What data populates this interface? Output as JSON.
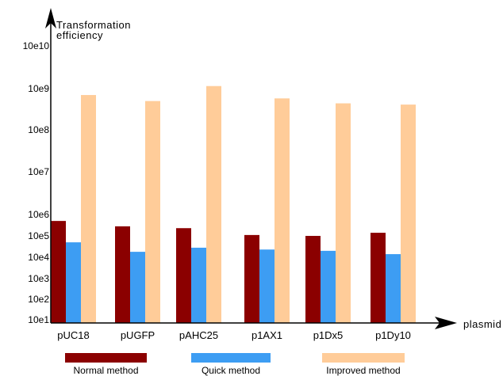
{
  "chart_data": {
    "type": "bar",
    "ylabel_line1": "Transformation",
    "ylabel_line2": "efficiency",
    "xlabel": "plasmid",
    "categories": [
      "pUC18",
      "pUGFP",
      "pAHC25",
      "p1AX1",
      "p1Dx5",
      "p1Dy10"
    ],
    "series": [
      {
        "name": "Normal method",
        "color": "#8b0000",
        "values": [
          500000,
          280000,
          230000,
          110000,
          100000,
          140000
        ]
      },
      {
        "name": "Quick method",
        "color": "#3d9df3",
        "values": [
          50000,
          18000,
          28000,
          23000,
          20000,
          14000
        ]
      },
      {
        "name": "Improved method",
        "color": "#ffcc99",
        "values": [
          700000000,
          500000000,
          1150000000,
          580000000,
          440000000,
          410000000
        ]
      }
    ],
    "yticks": [
      {
        "label": "10e1",
        "value": 10
      },
      {
        "label": "10e2",
        "value": 100
      },
      {
        "label": "10e3",
        "value": 1000
      },
      {
        "label": "10e4",
        "value": 10000
      },
      {
        "label": "10e5",
        "value": 100000
      },
      {
        "label": "10e6",
        "value": 1000000
      },
      {
        "label": "10e7",
        "value": 10000000
      },
      {
        "label": "10e8",
        "value": 100000000
      },
      {
        "label": "10e9",
        "value": 1000000000
      },
      {
        "label": "10e10",
        "value": 10000000000
      }
    ],
    "yscale": "log",
    "legend_position": "bottom",
    "grid": false
  }
}
